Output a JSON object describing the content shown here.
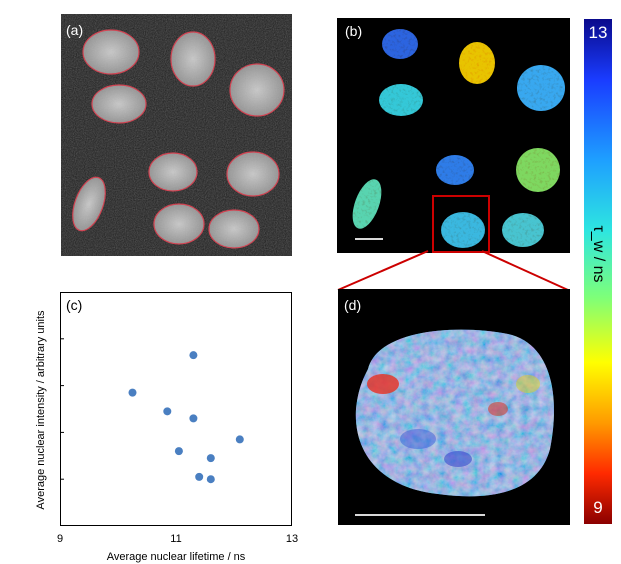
{
  "panels": {
    "a": {
      "label": "(a)"
    },
    "b": {
      "label": "(b)"
    },
    "c": {
      "label": "(c)"
    },
    "d": {
      "label": "(d)"
    }
  },
  "colorbar": {
    "max_label": "13",
    "min_label": "9",
    "title": "τ_w / ns",
    "colors": [
      "#0a0a8c",
      "#1ea0ff",
      "#2ee6e0",
      "#ffff00",
      "#ff2a00",
      "#8b0000"
    ]
  },
  "highlight_color": "#cc0000",
  "chart_data": {
    "type": "scatter",
    "xlabel": "Average nuclear lifetime / ns",
    "ylabel": "Average nuclear intensity / arbitrary units",
    "xlim": [
      9,
      13
    ],
    "ylim": [
      0,
      10
    ],
    "x_ticks": [
      "9",
      "11",
      "13"
    ],
    "grid": false,
    "point_color": "#4a7fc1",
    "points": [
      {
        "x": 10.25,
        "y": 5.7
      },
      {
        "x": 10.85,
        "y": 4.9
      },
      {
        "x": 11.05,
        "y": 3.2
      },
      {
        "x": 11.3,
        "y": 7.3
      },
      {
        "x": 11.3,
        "y": 4.6
      },
      {
        "x": 11.4,
        "y": 2.1
      },
      {
        "x": 11.6,
        "y": 2.9
      },
      {
        "x": 11.6,
        "y": 2.0
      },
      {
        "x": 12.1,
        "y": 3.7
      }
    ]
  }
}
